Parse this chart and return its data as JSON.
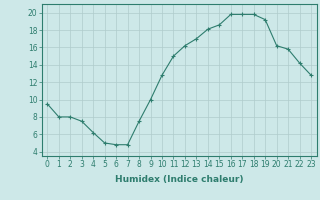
{
  "x": [
    0,
    1,
    2,
    3,
    4,
    5,
    6,
    7,
    8,
    9,
    10,
    11,
    12,
    13,
    14,
    15,
    16,
    17,
    18,
    19,
    20,
    21,
    22,
    23
  ],
  "y": [
    9.5,
    8.0,
    8.0,
    7.5,
    6.2,
    5.0,
    4.8,
    4.8,
    7.5,
    10.0,
    12.8,
    15.0,
    16.2,
    17.0,
    18.1,
    18.6,
    19.8,
    19.8,
    19.8,
    19.2,
    16.2,
    15.8,
    14.2,
    12.8
  ],
  "line_color": "#2e7d6e",
  "marker": "+",
  "marker_size": 3,
  "bg_color": "#cde8e8",
  "grid_color": "#b0cccc",
  "axis_color": "#2e7d6e",
  "xlabel": "Humidex (Indice chaleur)",
  "xlim": [
    -0.5,
    23.5
  ],
  "ylim": [
    3.5,
    21.0
  ],
  "yticks": [
    4,
    6,
    8,
    10,
    12,
    14,
    16,
    18,
    20
  ],
  "xticks": [
    0,
    1,
    2,
    3,
    4,
    5,
    6,
    7,
    8,
    9,
    10,
    11,
    12,
    13,
    14,
    15,
    16,
    17,
    18,
    19,
    20,
    21,
    22,
    23
  ],
  "font_color": "#2e7d6e",
  "label_fontsize": 6.5,
  "tick_fontsize": 5.5
}
